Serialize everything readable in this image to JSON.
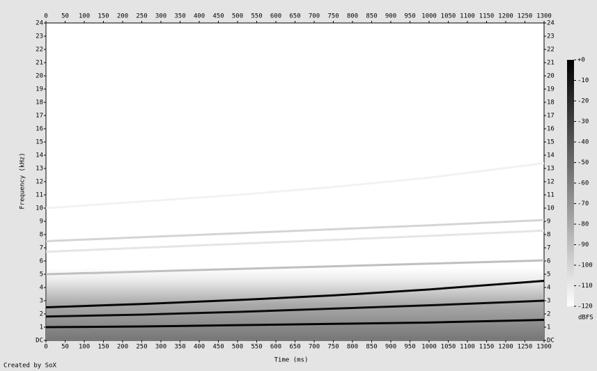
{
  "chart_data": {
    "type": "spectrogram",
    "xlabel": "Time (ms)",
    "ylabel": "Frequency (kHz)",
    "footer": "Created by SoX",
    "xlim": [
      0,
      1300
    ],
    "xticks": [
      0,
      50,
      100,
      150,
      200,
      250,
      300,
      350,
      400,
      450,
      500,
      550,
      600,
      650,
      700,
      750,
      800,
      850,
      900,
      950,
      1000,
      1050,
      1100,
      1150,
      1200,
      1250,
      1300
    ],
    "ylim": [
      0,
      24
    ],
    "yticks": [
      {
        "value": 0,
        "label": "DC"
      },
      1,
      2,
      3,
      4,
      5,
      6,
      7,
      8,
      9,
      10,
      11,
      12,
      13,
      14,
      15,
      16,
      17,
      18,
      19,
      20,
      21,
      22,
      23,
      24
    ],
    "colorbar": {
      "label": "dBFS",
      "lim": [
        -120,
        0
      ],
      "ticks": [
        {
          "value": 0,
          "label": "+0"
        },
        -10,
        -20,
        -30,
        -40,
        -50,
        -60,
        -70,
        -80,
        -90,
        -100,
        -110,
        -120
      ]
    },
    "x": [
      0,
      250,
      500,
      750,
      1000,
      1300
    ],
    "curves": [
      {
        "level": -2,
        "values": [
          1.0,
          1.05,
          1.15,
          1.25,
          1.35,
          1.55
        ]
      },
      {
        "level": -5,
        "values": [
          1.8,
          1.95,
          2.15,
          2.4,
          2.65,
          3.0
        ]
      },
      {
        "level": -3,
        "values": [
          2.5,
          2.75,
          3.05,
          3.4,
          3.85,
          4.5
        ]
      },
      {
        "level": -90,
        "values": [
          5.0,
          5.2,
          5.4,
          5.6,
          5.8,
          6.05
        ]
      },
      {
        "level": -108,
        "values": [
          6.7,
          7.0,
          7.3,
          7.6,
          7.9,
          8.3
        ]
      },
      {
        "level": -100,
        "values": [
          7.5,
          7.8,
          8.1,
          8.4,
          8.7,
          9.1
        ]
      },
      {
        "level": -114,
        "values": [
          10.0,
          10.5,
          11.0,
          11.6,
          12.3,
          13.4
        ]
      }
    ]
  }
}
